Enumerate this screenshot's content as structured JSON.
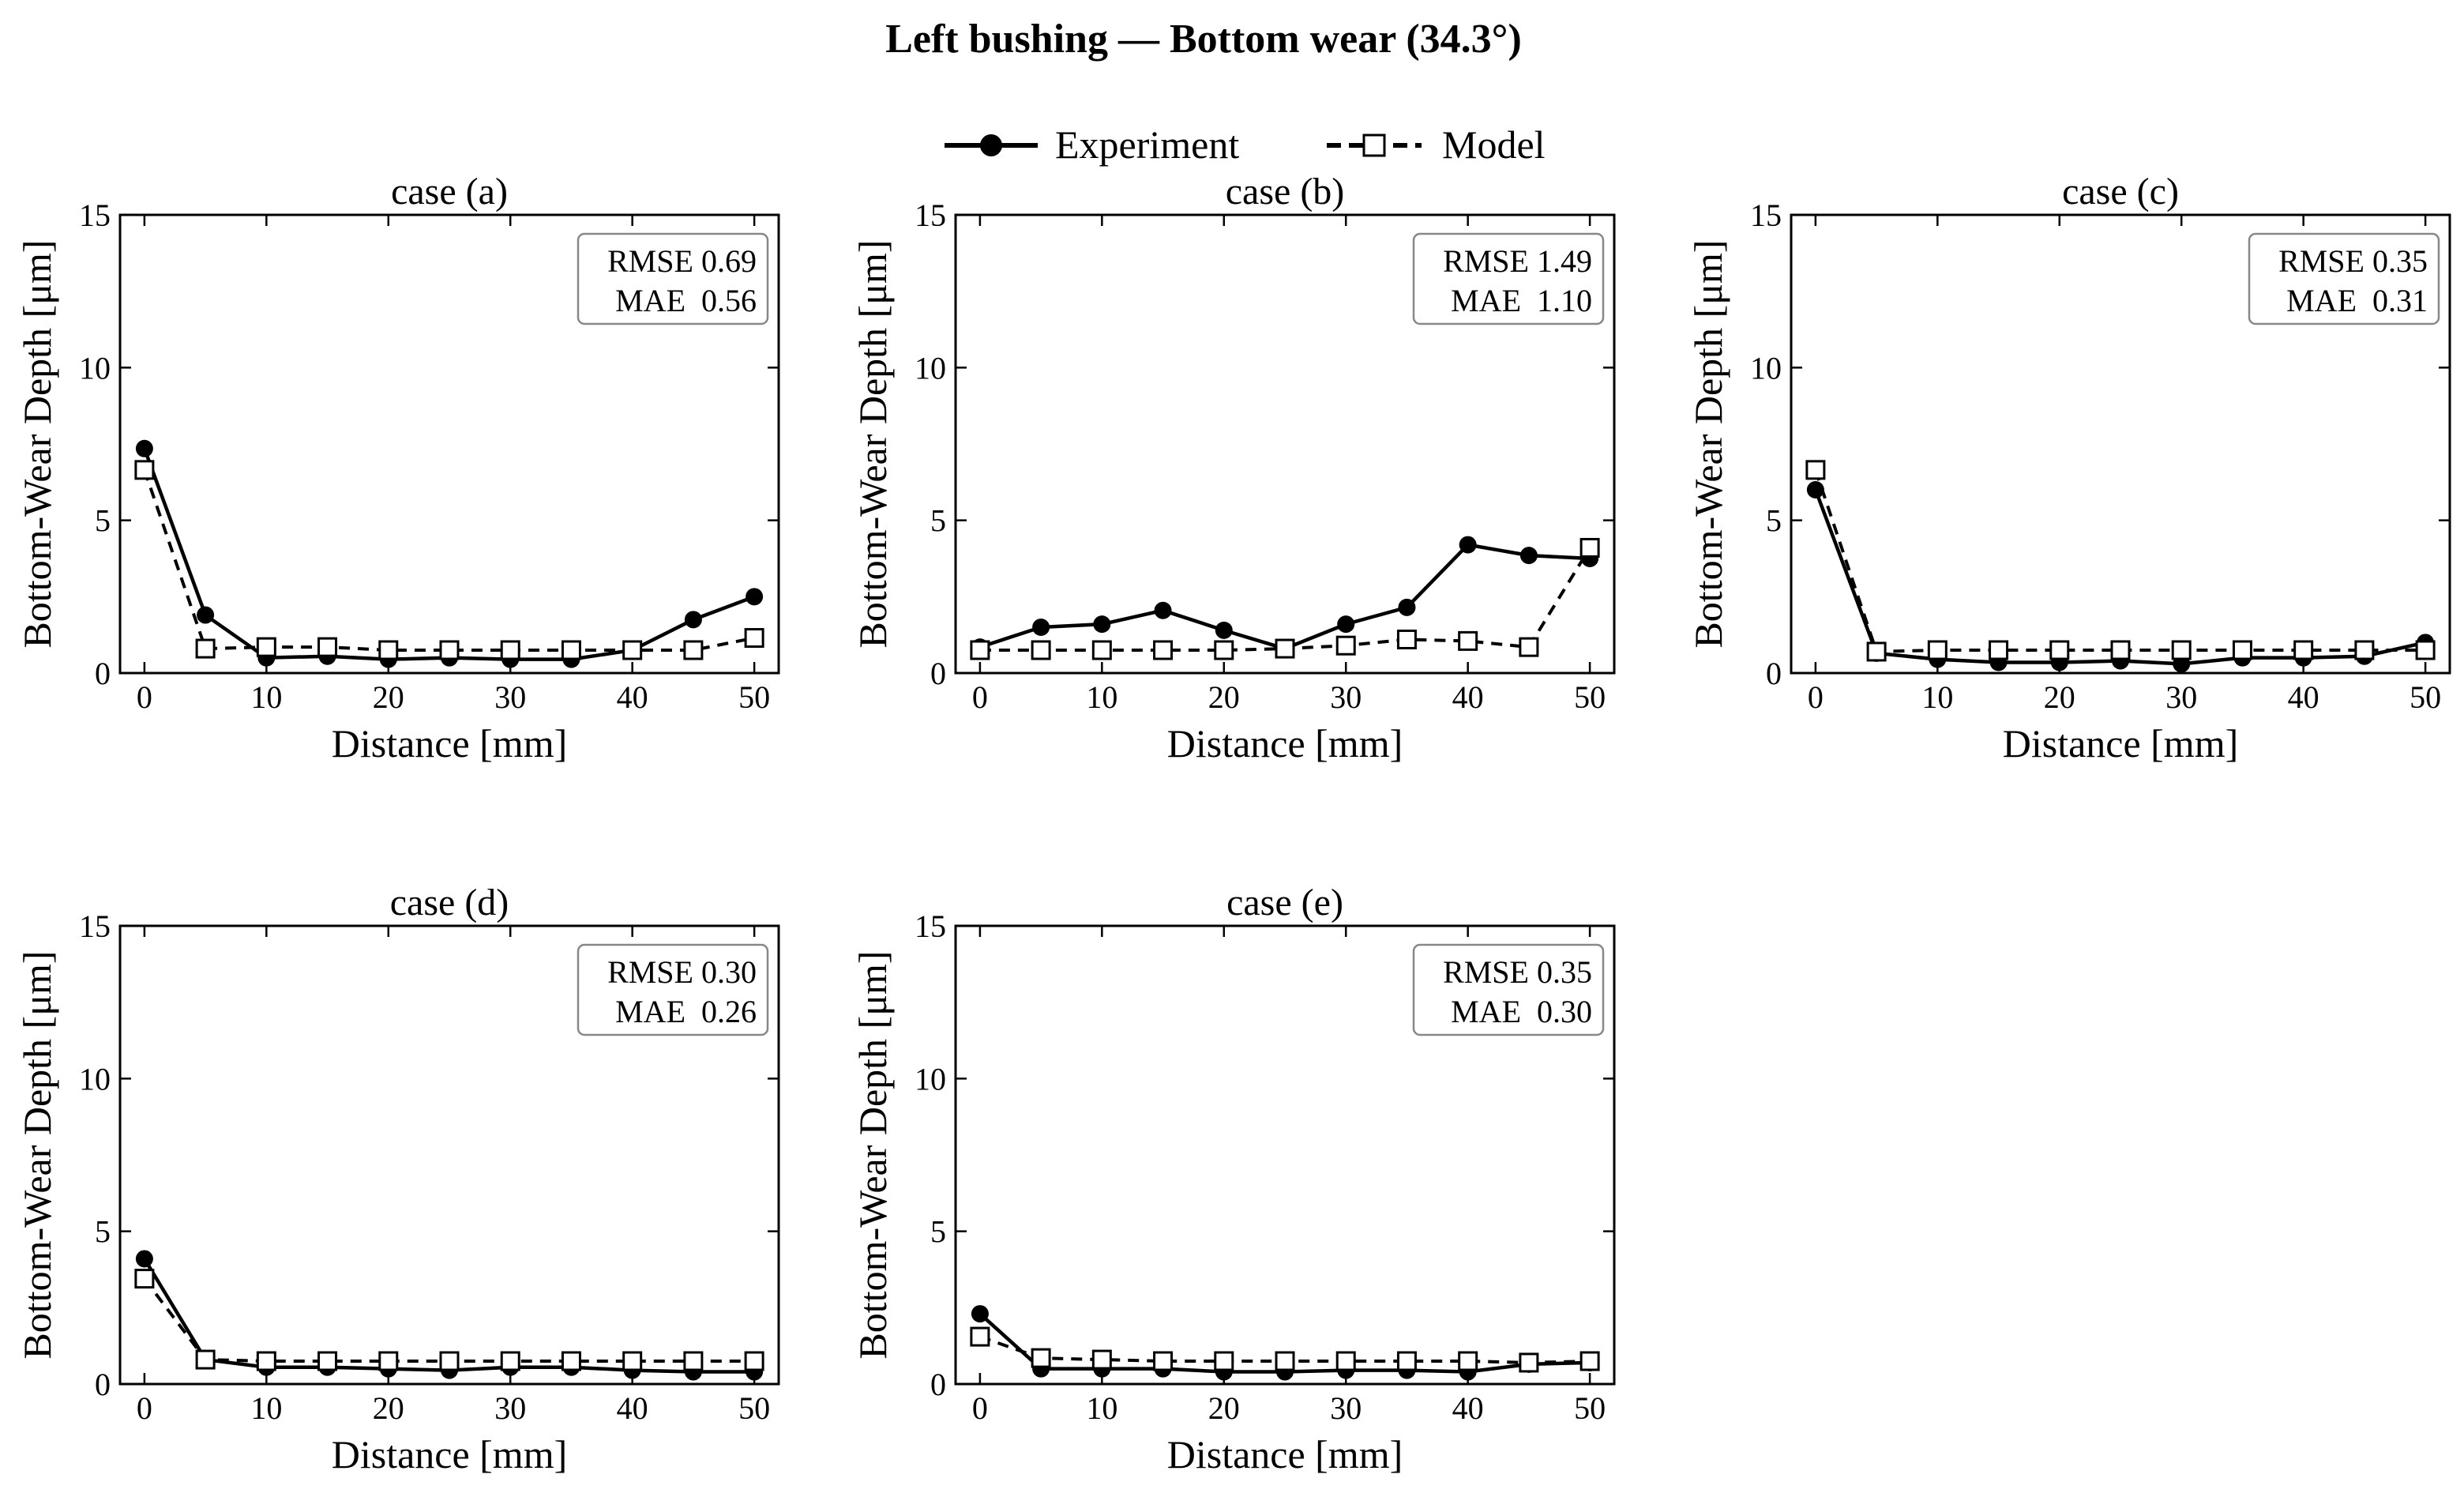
{
  "figure": {
    "title": "Left bushing — Bottom wear (34.3°)",
    "legend": {
      "placement": "top-center",
      "items": [
        {
          "label": "Experiment",
          "marker": "filled-circle",
          "line": "solid",
          "color": "#000000"
        },
        {
          "label": "Model",
          "marker": "open-square",
          "line": "dashed",
          "color": "#000000"
        }
      ]
    }
  },
  "chart_data": [
    {
      "type": "line",
      "title": "case (a)",
      "xlabel": "Distance [mm]",
      "ylabel": "Bottom-Wear Depth [μm]",
      "xlim": [
        -2,
        52
      ],
      "ylim": [
        0,
        15
      ],
      "xticks": [
        "0",
        "10",
        "20",
        "30",
        "40",
        "50"
      ],
      "yticks": [
        "0",
        "5",
        "10",
        "15"
      ],
      "x": [
        0,
        5,
        10,
        15,
        20,
        25,
        30,
        35,
        40,
        45,
        50
      ],
      "grid": false,
      "metrics": {
        "rmse_label": "RMSE",
        "rmse": "0.69",
        "mae_label": "MAE",
        "mae": "0.56"
      },
      "series": [
        {
          "name": "Experiment",
          "values": [
            7.35,
            1.9,
            0.5,
            0.55,
            0.45,
            0.5,
            0.45,
            0.45,
            0.75,
            1.75,
            2.5
          ]
        },
        {
          "name": "Model",
          "values": [
            6.65,
            0.8,
            0.85,
            0.85,
            0.75,
            0.75,
            0.75,
            0.75,
            0.75,
            0.75,
            1.15
          ]
        }
      ]
    },
    {
      "type": "line",
      "title": "case (b)",
      "xlabel": "Distance [mm]",
      "ylabel": "Bottom-Wear Depth [μm]",
      "xlim": [
        -2,
        52
      ],
      "ylim": [
        0,
        15
      ],
      "xticks": [
        "0",
        "10",
        "20",
        "30",
        "40",
        "50"
      ],
      "yticks": [
        "0",
        "5",
        "10",
        "15"
      ],
      "x": [
        0,
        5,
        10,
        15,
        20,
        25,
        30,
        35,
        40,
        45,
        50
      ],
      "grid": false,
      "metrics": {
        "rmse_label": "RMSE",
        "rmse": "1.49",
        "mae_label": "MAE",
        "mae": "1.10"
      },
      "series": [
        {
          "name": "Experiment",
          "values": [
            0.85,
            1.5,
            1.6,
            2.05,
            1.4,
            0.8,
            1.6,
            2.15,
            4.2,
            3.85,
            3.75
          ]
        },
        {
          "name": "Model",
          "values": [
            0.75,
            0.75,
            0.75,
            0.75,
            0.75,
            0.8,
            0.9,
            1.1,
            1.05,
            0.85,
            4.1
          ]
        }
      ]
    },
    {
      "type": "line",
      "title": "case (c)",
      "xlabel": "Distance [mm]",
      "ylabel": "Bottom-Wear Depth [μm]",
      "xlim": [
        -2,
        52
      ],
      "ylim": [
        0,
        15
      ],
      "xticks": [
        "0",
        "10",
        "20",
        "30",
        "40",
        "50"
      ],
      "yticks": [
        "0",
        "5",
        "10",
        "15"
      ],
      "x": [
        0,
        5,
        10,
        15,
        20,
        25,
        30,
        35,
        40,
        45,
        50
      ],
      "grid": false,
      "metrics": {
        "rmse_label": "RMSE",
        "rmse": "0.35",
        "mae_label": "MAE",
        "mae": "0.31"
      },
      "series": [
        {
          "name": "Experiment",
          "values": [
            6.0,
            0.65,
            0.45,
            0.35,
            0.35,
            0.4,
            0.3,
            0.5,
            0.5,
            0.55,
            1.0
          ]
        },
        {
          "name": "Model",
          "values": [
            6.65,
            0.7,
            0.75,
            0.75,
            0.75,
            0.75,
            0.75,
            0.75,
            0.75,
            0.75,
            0.75
          ]
        }
      ]
    },
    {
      "type": "line",
      "title": "case (d)",
      "xlabel": "Distance [mm]",
      "ylabel": "Bottom-Wear Depth [μm]",
      "xlim": [
        -2,
        52
      ],
      "ylim": [
        0,
        15
      ],
      "xticks": [
        "0",
        "10",
        "20",
        "30",
        "40",
        "50"
      ],
      "yticks": [
        "0",
        "5",
        "10",
        "15"
      ],
      "x": [
        0,
        5,
        10,
        15,
        20,
        25,
        30,
        35,
        40,
        45,
        50
      ],
      "grid": false,
      "metrics": {
        "rmse_label": "RMSE",
        "rmse": "0.30",
        "mae_label": "MAE",
        "mae": "0.26"
      },
      "series": [
        {
          "name": "Experiment",
          "values": [
            4.1,
            0.8,
            0.55,
            0.55,
            0.5,
            0.45,
            0.55,
            0.55,
            0.45,
            0.4,
            0.4
          ]
        },
        {
          "name": "Model",
          "values": [
            3.45,
            0.8,
            0.75,
            0.75,
            0.75,
            0.75,
            0.75,
            0.75,
            0.75,
            0.75,
            0.75
          ]
        }
      ]
    },
    {
      "type": "line",
      "title": "case (e)",
      "xlabel": "Distance [mm]",
      "ylabel": "Bottom-Wear Depth [μm]",
      "xlim": [
        -2,
        52
      ],
      "ylim": [
        0,
        15
      ],
      "xticks": [
        "0",
        "10",
        "20",
        "30",
        "40",
        "50"
      ],
      "yticks": [
        "0",
        "5",
        "10",
        "15"
      ],
      "x": [
        0,
        5,
        10,
        15,
        20,
        25,
        30,
        35,
        40,
        45,
        50
      ],
      "grid": false,
      "metrics": {
        "rmse_label": "RMSE",
        "rmse": "0.35",
        "mae_label": "MAE",
        "mae": "0.30"
      },
      "series": [
        {
          "name": "Experiment",
          "values": [
            2.3,
            0.5,
            0.5,
            0.5,
            0.4,
            0.4,
            0.45,
            0.45,
            0.4,
            0.65,
            0.7
          ]
        },
        {
          "name": "Model",
          "values": [
            1.55,
            0.85,
            0.8,
            0.75,
            0.75,
            0.75,
            0.75,
            0.75,
            0.75,
            0.7,
            0.75
          ]
        }
      ]
    }
  ]
}
